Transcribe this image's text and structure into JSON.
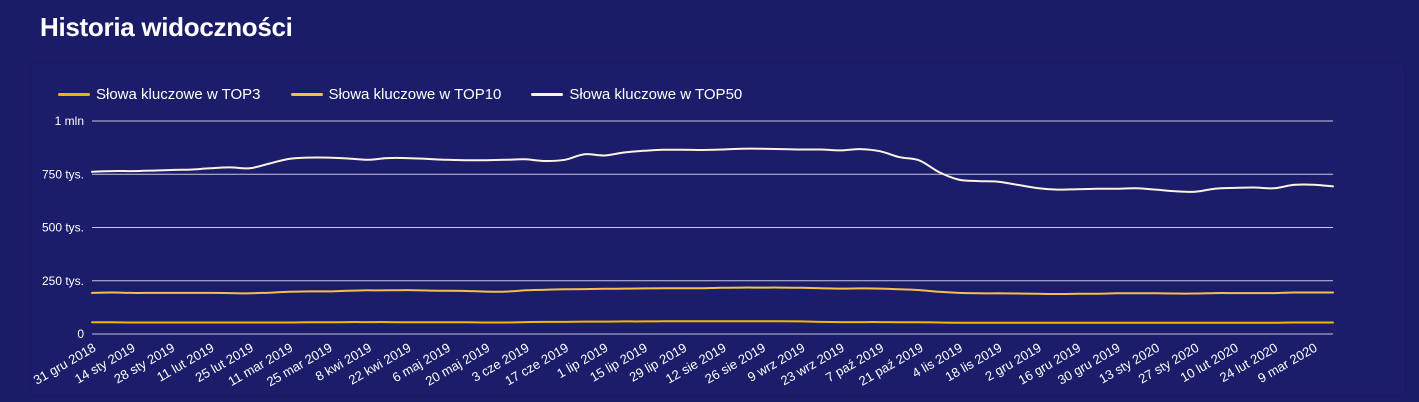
{
  "page": {
    "title": "Historia widoczności"
  },
  "chart_data": {
    "type": "line",
    "title": "",
    "xlabel": "",
    "ylabel": "",
    "ylim": [
      0,
      1000000
    ],
    "grid": true,
    "legend_position": "top-left",
    "y_ticks": [
      {
        "value": 0,
        "label": "0"
      },
      {
        "value": 250000,
        "label": "250 tys."
      },
      {
        "value": 500000,
        "label": "500 tys."
      },
      {
        "value": 750000,
        "label": "750 tys."
      },
      {
        "value": 1000000,
        "label": "1 mln"
      }
    ],
    "x_tick_labels": [
      "31 gru 2018",
      "14 sty 2019",
      "28 sty 2019",
      "11 lut 2019",
      "25 lut 2019",
      "11 mar 2019",
      "25 mar 2019",
      "8 kwi 2019",
      "22 kwi 2019",
      "6 maj 2019",
      "20 maj 2019",
      "3 cze 2019",
      "17 cze 2019",
      "1 lip 2019",
      "15 lip 2019",
      "29 lip 2019",
      "12 sie 2019",
      "26 sie 2019",
      "9 wrz 2019",
      "23 wrz 2019",
      "7 paź 2019",
      "21 paź 2019",
      "4 lis 2019",
      "18 lis 2019",
      "2 gru 2019",
      "16 gru 2019",
      "30 gru 2019",
      "13 sty 2020",
      "27 sty 2020",
      "10 lut 2020",
      "24 lut 2020",
      "9 mar 2020"
    ],
    "x": [
      "2018-12-31",
      "2019-01-07",
      "2019-01-14",
      "2019-01-21",
      "2019-01-28",
      "2019-02-04",
      "2019-02-11",
      "2019-02-18",
      "2019-02-25",
      "2019-03-04",
      "2019-03-11",
      "2019-03-18",
      "2019-03-25",
      "2019-04-01",
      "2019-04-08",
      "2019-04-15",
      "2019-04-22",
      "2019-04-29",
      "2019-05-06",
      "2019-05-13",
      "2019-05-20",
      "2019-05-27",
      "2019-06-03",
      "2019-06-10",
      "2019-06-17",
      "2019-06-24",
      "2019-07-01",
      "2019-07-08",
      "2019-07-15",
      "2019-07-22",
      "2019-07-29",
      "2019-08-05",
      "2019-08-12",
      "2019-08-19",
      "2019-08-26",
      "2019-09-02",
      "2019-09-09",
      "2019-09-16",
      "2019-09-23",
      "2019-09-30",
      "2019-10-07",
      "2019-10-14",
      "2019-10-21",
      "2019-10-28",
      "2019-11-04",
      "2019-11-11",
      "2019-11-18",
      "2019-11-25",
      "2019-12-02",
      "2019-12-09",
      "2019-12-16",
      "2019-12-23",
      "2019-12-30",
      "2020-01-06",
      "2020-01-13",
      "2020-01-20",
      "2020-01-27",
      "2020-02-03",
      "2020-02-10",
      "2020-02-17",
      "2020-02-24",
      "2020-03-02",
      "2020-03-09",
      "2020-03-16"
    ],
    "series": [
      {
        "name": "Słowa kluczowe w TOP3",
        "color": "#f5b400",
        "values": [
          55000,
          55000,
          54000,
          54000,
          54000,
          54000,
          54000,
          54000,
          54000,
          54000,
          54000,
          55000,
          55000,
          56000,
          56000,
          56000,
          55000,
          55000,
          55000,
          55000,
          54000,
          54000,
          56000,
          57000,
          57000,
          58000,
          58000,
          59000,
          59000,
          60000,
          60000,
          60000,
          60000,
          60000,
          60000,
          60000,
          59000,
          57000,
          56000,
          56000,
          56000,
          55000,
          55000,
          54000,
          53000,
          53000,
          53000,
          53000,
          53000,
          53000,
          53000,
          53000,
          53000,
          53000,
          53000,
          53000,
          53000,
          53000,
          53000,
          53000,
          53000,
          54000,
          54000,
          54000
        ]
      },
      {
        "name": "Słowa kluczowe w TOP10",
        "color": "#f5c04a",
        "values": [
          193000,
          195000,
          193000,
          193000,
          193000,
          193000,
          193000,
          192000,
          191000,
          194000,
          198000,
          200000,
          200000,
          203000,
          205000,
          205000,
          206000,
          204000,
          203000,
          202000,
          199000,
          199000,
          205000,
          208000,
          210000,
          211000,
          212000,
          213000,
          214000,
          215000,
          215000,
          215000,
          217000,
          218000,
          218000,
          218000,
          217000,
          215000,
          213000,
          214000,
          213000,
          210000,
          206000,
          198000,
          193000,
          191000,
          191000,
          190000,
          189000,
          188000,
          189000,
          189000,
          191000,
          191000,
          191000,
          190000,
          190000,
          192000,
          192000,
          192000,
          192000,
          195000,
          195000,
          195000
        ]
      },
      {
        "name": "Słowa kluczowe w TOP50",
        "color": "#fdf4e0",
        "values": [
          762000,
          765000,
          765000,
          767000,
          770000,
          772000,
          778000,
          782000,
          778000,
          800000,
          822000,
          828000,
          828000,
          824000,
          818000,
          826000,
          826000,
          822000,
          818000,
          816000,
          816000,
          818000,
          820000,
          812000,
          818000,
          844000,
          838000,
          852000,
          860000,
          865000,
          865000,
          864000,
          866000,
          870000,
          870000,
          868000,
          866000,
          866000,
          862000,
          868000,
          858000,
          830000,
          815000,
          760000,
          725000,
          718000,
          715000,
          700000,
          685000,
          678000,
          680000,
          682000,
          682000,
          684000,
          678000,
          670000,
          668000,
          682000,
          686000,
          688000,
          684000,
          700000,
          701000,
          693000
        ]
      }
    ]
  }
}
